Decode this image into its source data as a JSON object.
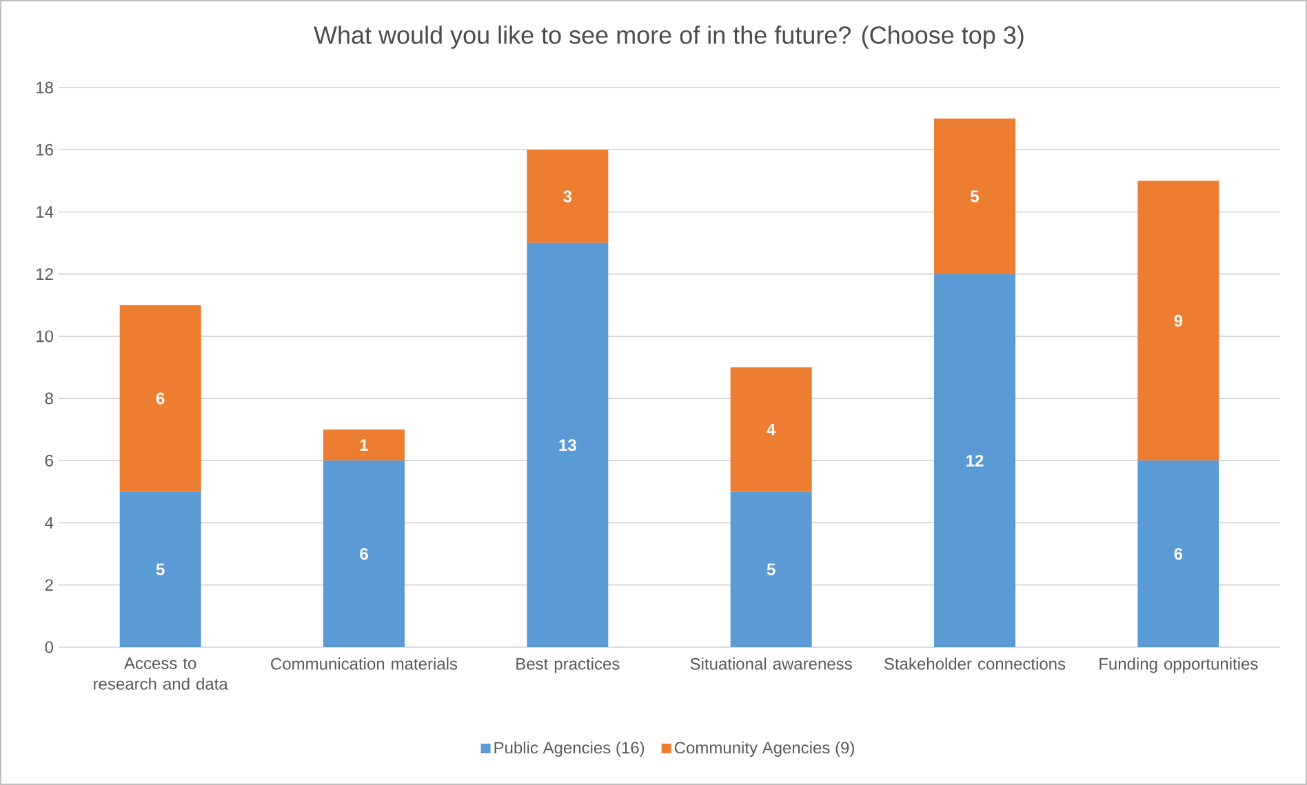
{
  "chart_data": {
    "type": "bar",
    "title": "What would you like to see more of in the future? (Choose top 3)",
    "categories": [
      "Access to research and data",
      "Communication materials",
      "Best practices",
      "Situational awareness",
      "Stakeholder connections",
      "Funding opportunities"
    ],
    "series": [
      {
        "name": "Public Agencies (16)",
        "color": "#5b9bd5",
        "values": [
          5,
          6,
          13,
          5,
          12,
          6
        ]
      },
      {
        "name": "Community Agencies (9)",
        "color": "#ed7d31",
        "values": [
          6,
          1,
          3,
          4,
          5,
          9
        ]
      }
    ],
    "stacked": true,
    "ylim": [
      0,
      18
    ],
    "yticks": [
      0,
      2,
      4,
      6,
      8,
      10,
      12,
      14,
      16,
      18
    ],
    "grid": "y",
    "legend": "bottom",
    "data_labels": true
  }
}
